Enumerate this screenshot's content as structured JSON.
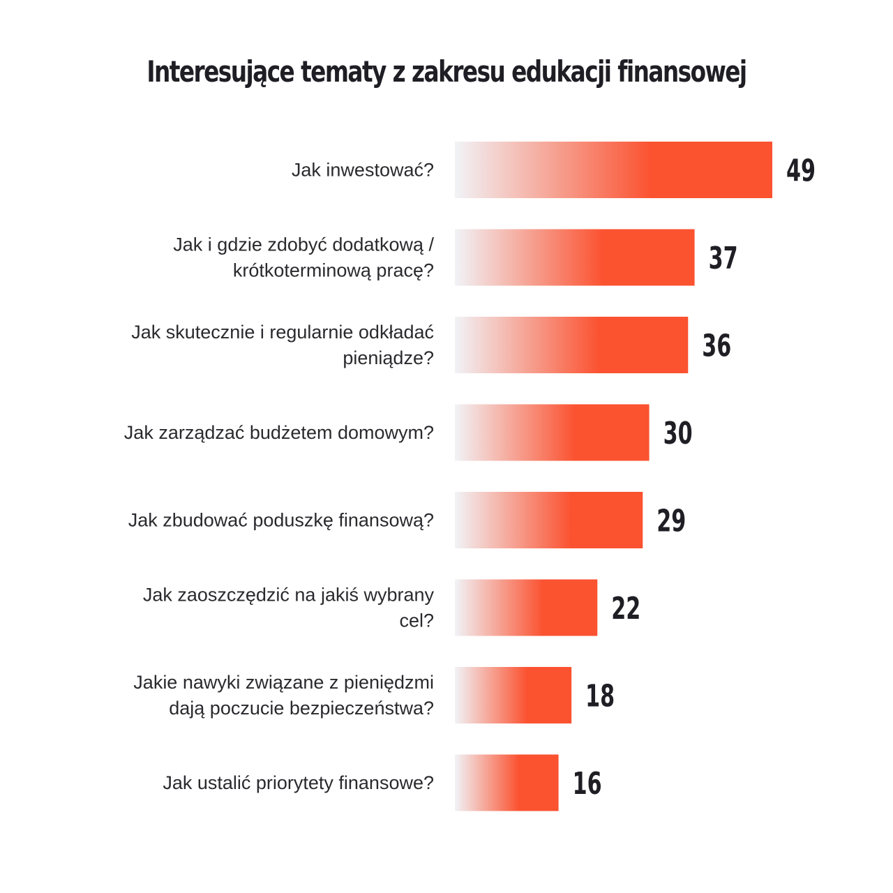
{
  "chart_data": {
    "type": "bar",
    "orientation": "horizontal",
    "title": "Interesujące tematy z zakresu edukacji finansowej",
    "categories": [
      [
        "Jak inwestować?"
      ],
      [
        "Jak i gdzie zdobyć dodatkową /",
        "krótkoterminową pracę?"
      ],
      [
        "Jak skutecznie i regularnie odkładać",
        "pieniądze?"
      ],
      [
        "Jak zarządzać budżetem domowym?"
      ],
      [
        "Jak zbudować poduszkę finansową?"
      ],
      [
        "Jak zaoszczędzić na jakiś wybrany",
        "cel?"
      ],
      [
        "Jakie nawyki związane z pieniędzmi",
        "dają poczucie bezpieczeństwa?"
      ],
      [
        "Jak ustalić priorytety finansowe?"
      ]
    ],
    "values": [
      49,
      37,
      36,
      30,
      29,
      22,
      18,
      16
    ],
    "value_labels": [
      "49",
      "37",
      "36",
      "30",
      "29",
      "22",
      "18",
      "16"
    ],
    "grid": false,
    "legend": "none",
    "colors": {
      "bar_start": "#f1f3f7",
      "bar_end": "#fb5230"
    }
  }
}
